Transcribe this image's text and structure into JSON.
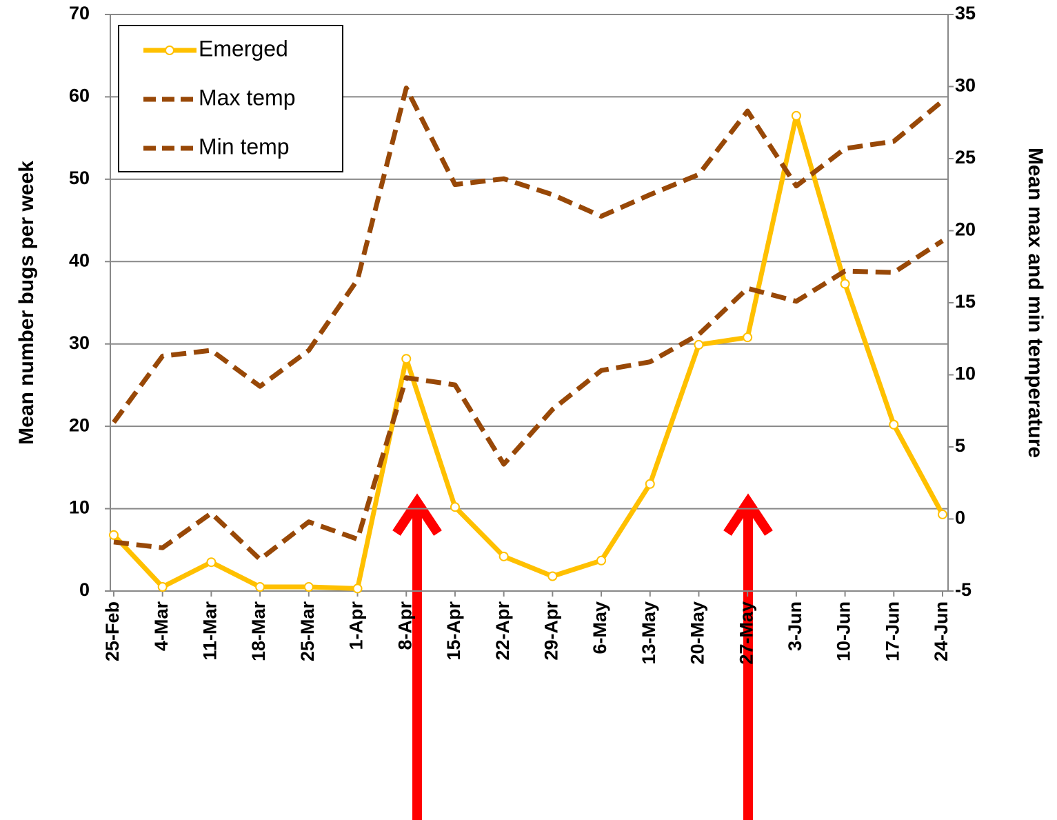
{
  "chart_data": {
    "type": "line",
    "categories": [
      "25-Feb",
      "4-Mar",
      "11-Mar",
      "18-Mar",
      "25-Mar",
      "1-Apr",
      "8-Apr",
      "15-Apr",
      "22-Apr",
      "29-Apr",
      "6-May",
      "13-May",
      "20-May",
      "27-May",
      "3-Jun",
      "10-Jun",
      "17-Jun",
      "24-Jun"
    ],
    "y_label": "Mean number bugs per week",
    "y2_label": "Mean max and min temperature",
    "ylim": [
      0,
      70
    ],
    "yticks": [
      0,
      10,
      20,
      30,
      40,
      50,
      60,
      70
    ],
    "y2lim": [
      -5,
      35
    ],
    "y2ticks": [
      -5,
      0,
      5,
      10,
      15,
      20,
      25,
      30,
      35
    ],
    "grid": true,
    "legend": "upper left",
    "series": [
      {
        "name": "Emerged",
        "color": "#ffc000",
        "markers": true,
        "values": [
          6.8,
          0.5,
          3.5,
          0.5,
          0.5,
          0.3,
          28.2,
          10.2,
          4.2,
          1.8,
          3.7,
          13.0,
          29.9,
          30.8,
          57.7,
          37.3,
          20.2,
          9.3
        ]
      },
      {
        "name": "Max temp",
        "color": "#984807",
        "dashed": true,
        "axis": "y2",
        "values": [
          6.7,
          11.3,
          11.7,
          9.2,
          11.7,
          16.6,
          29.9,
          23.2,
          23.6,
          22.5,
          21.0,
          22.5,
          23.9,
          28.3,
          23.1,
          25.7,
          26.2,
          29.0
        ]
      },
      {
        "name": "Min temp",
        "color": "#984807",
        "dashed": true,
        "axis": "y2",
        "values": [
          -1.6,
          -2.0,
          0.4,
          -2.8,
          -0.2,
          -1.4,
          9.8,
          9.3,
          3.8,
          7.6,
          10.3,
          10.9,
          12.8,
          16.0,
          15.1,
          17.2,
          17.1,
          19.3
        ]
      }
    ]
  }
}
